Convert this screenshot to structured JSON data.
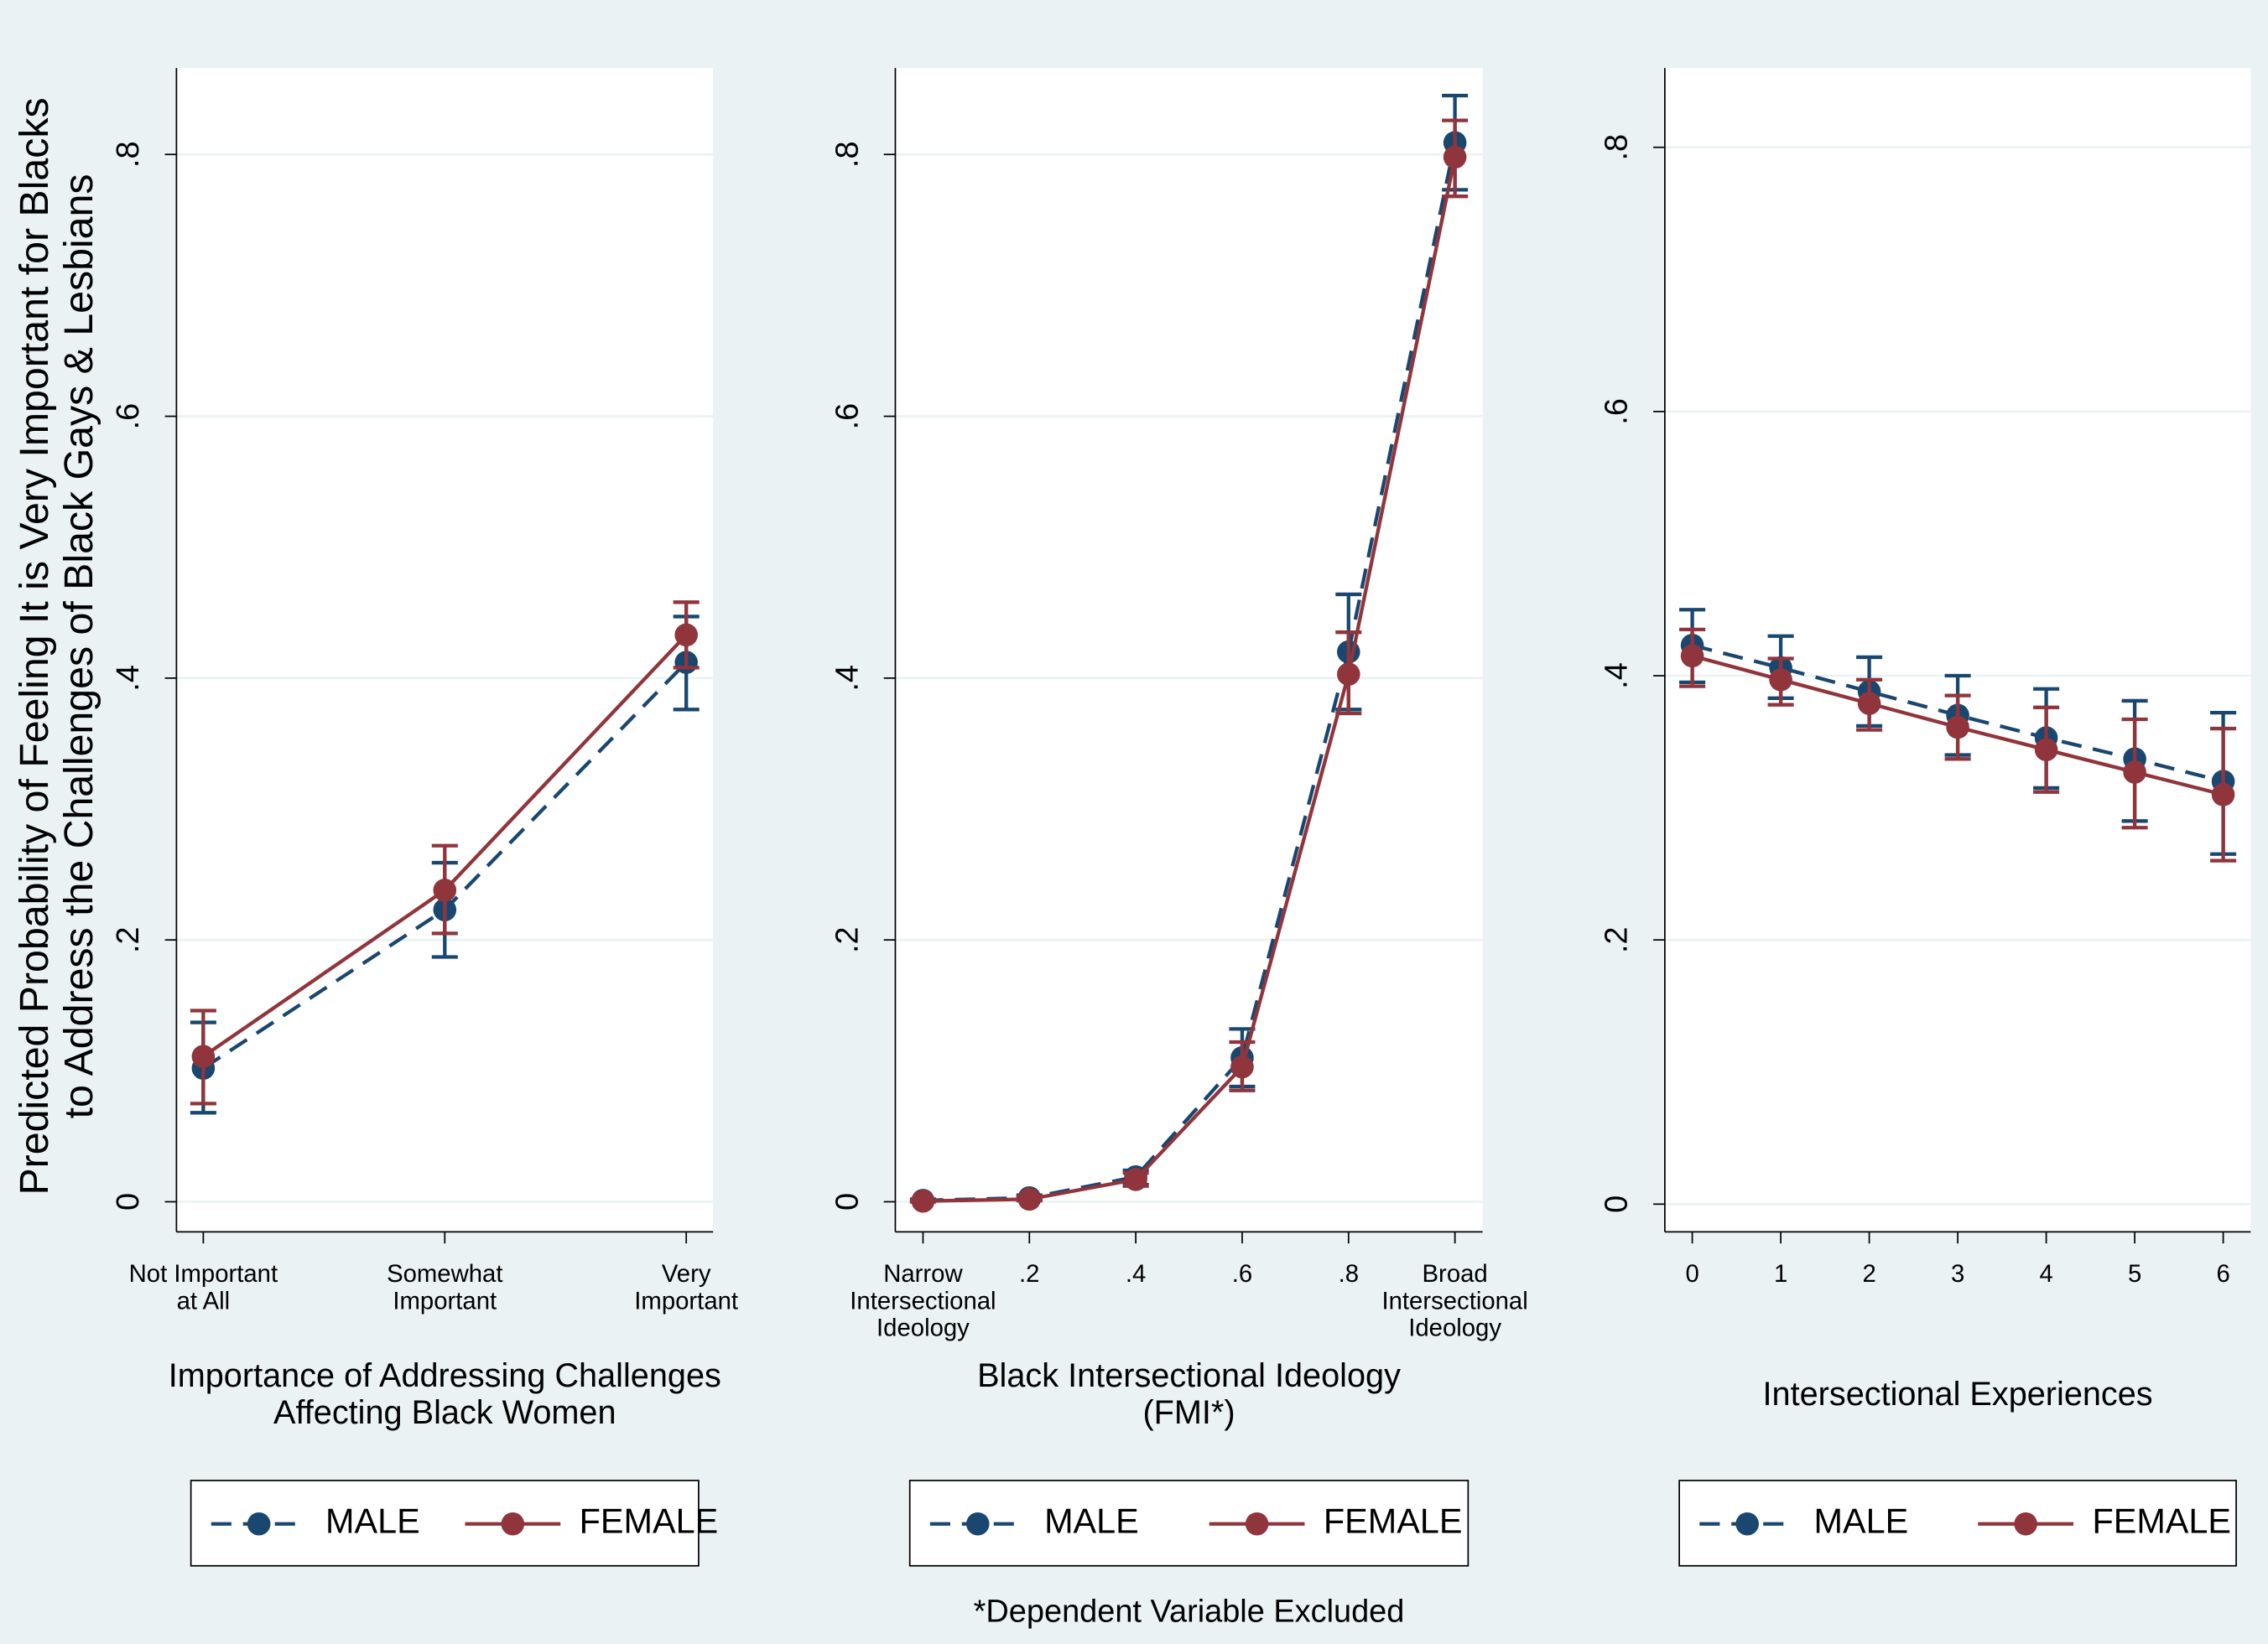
{
  "chart_data": [
    {
      "type": "line",
      "ylabel": "Predicted Probability of Feeling It is Very Important for Blacks\nto Address the Challenges of Black Gays & Lesbians",
      "xlabel": "Importance of Addressing Challenges\nAffecting Black Women",
      "categories": [
        "Not Important\nat All",
        "Somewhat\nImportant",
        "Very\nImportant"
      ],
      "ylim": [
        -0.023,
        0.866
      ],
      "yticks": [
        0,
        {
          "value": 0.2,
          "label": ".2"
        },
        {
          "value": 0.4,
          "label": ".4"
        },
        {
          "value": 0.6,
          "label": ".6"
        },
        {
          "value": 0.8,
          "label": ".8"
        }
      ],
      "grid": true,
      "series": [
        {
          "name": "MALE",
          "color": "#1a476f",
          "dashed": true,
          "values": [
            0.102,
            0.223,
            0.412
          ],
          "lower": [
            0.068,
            0.187,
            0.376
          ],
          "upper": [
            0.137,
            0.259,
            0.447
          ]
        },
        {
          "name": "FEMALE",
          "color": "#90353b",
          "dashed": false,
          "values": [
            0.111,
            0.238,
            0.433
          ],
          "lower": [
            0.075,
            0.205,
            0.408
          ],
          "upper": [
            0.146,
            0.272,
            0.458
          ]
        }
      ]
    },
    {
      "type": "line",
      "xlabel": "Black Intersectional Ideology\n(FMI*)",
      "x": [
        0,
        0.2,
        0.4,
        0.6,
        0.8,
        1
      ],
      "xlim": [
        -0.052,
        1.052
      ],
      "xticks": [
        {
          "value": 0,
          "label": "Narrow\nIntersectional\nIdeology"
        },
        {
          "value": 0.2,
          "label": ".2"
        },
        {
          "value": 0.4,
          "label": ".4"
        },
        {
          "value": 0.6,
          "label": ".6"
        },
        {
          "value": 0.8,
          "label": ".8"
        },
        {
          "value": 1,
          "label": "Broad\nIntersectional\nIdeology"
        }
      ],
      "ylim": [
        -0.023,
        0.866
      ],
      "yticks": [
        0,
        {
          "value": 0.2,
          "label": ".2"
        },
        {
          "value": 0.4,
          "label": ".4"
        },
        {
          "value": 0.6,
          "label": ".6"
        },
        {
          "value": 0.8,
          "label": ".8"
        }
      ],
      "grid": true,
      "series": [
        {
          "name": "MALE",
          "color": "#1a476f",
          "dashed": true,
          "values": [
            0.001,
            0.003,
            0.019,
            0.11,
            0.42,
            0.809
          ],
          "lower": [
            0,
            0.001,
            0.013,
            0.088,
            0.376,
            0.773
          ],
          "upper": [
            0.002,
            0.005,
            0.024,
            0.132,
            0.464,
            0.845
          ]
        },
        {
          "name": "FEMALE",
          "color": "#90353b",
          "dashed": false,
          "values": [
            0.0005,
            0.002,
            0.017,
            0.103,
            0.403,
            0.798
          ],
          "lower": [
            0,
            0.001,
            0.012,
            0.085,
            0.373,
            0.768
          ],
          "upper": [
            0.001,
            0.004,
            0.022,
            0.122,
            0.435,
            0.826
          ]
        }
      ],
      "footnote": "*Dependent Variable Excluded"
    },
    {
      "type": "line",
      "xlabel": "Intersectional Experiences",
      "x": [
        0,
        1,
        2,
        3,
        4,
        5,
        6
      ],
      "xlim": [
        -0.31,
        6.31
      ],
      "xticks": [
        0,
        1,
        2,
        3,
        4,
        5,
        6
      ],
      "ylim": [
        -0.021,
        0.86
      ],
      "yticks": [
        0,
        {
          "value": 0.2,
          "label": ".2"
        },
        {
          "value": 0.4,
          "label": ".4"
        },
        {
          "value": 0.6,
          "label": ".6"
        },
        {
          "value": 0.8,
          "label": ".8"
        }
      ],
      "grid": true,
      "series": [
        {
          "name": "MALE",
          "color": "#1a476f",
          "dashed": true,
          "values": [
            0.423,
            0.406,
            0.388,
            0.37,
            0.353,
            0.337,
            0.32
          ],
          "lower": [
            0.395,
            0.383,
            0.362,
            0.34,
            0.315,
            0.29,
            0.265
          ],
          "upper": [
            0.45,
            0.43,
            0.414,
            0.4,
            0.39,
            0.381,
            0.372
          ]
        },
        {
          "name": "FEMALE",
          "color": "#90353b",
          "dashed": false,
          "values": [
            0.415,
            0.397,
            0.379,
            0.361,
            0.344,
            0.327,
            0.31
          ],
          "lower": [
            0.392,
            0.378,
            0.359,
            0.337,
            0.312,
            0.285,
            0.26
          ],
          "upper": [
            0.435,
            0.413,
            0.397,
            0.385,
            0.376,
            0.367,
            0.36
          ]
        }
      ]
    }
  ]
}
